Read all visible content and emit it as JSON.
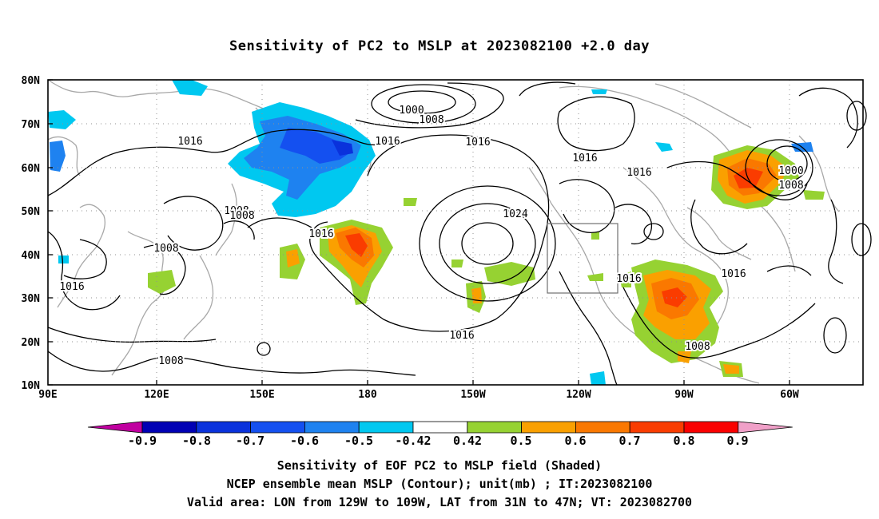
{
  "title": "Sensitivity of PC2 to MSLP at 2023082100 +2.0 day",
  "lat_labels": [
    "80N",
    "70N",
    "60N",
    "50N",
    "40N",
    "30N",
    "20N",
    "10N"
  ],
  "lon_labels": [
    "90E",
    "120E",
    "150E",
    "180",
    "150W",
    "120W",
    "90W",
    "60W"
  ],
  "contour_labels": [
    "1000",
    "1008",
    "1016",
    "1016",
    "1016",
    "1016",
    "1024",
    "1016",
    "1016",
    "1016",
    "1016",
    "1016",
    "1008",
    "1008",
    "1008",
    "1016",
    "1008",
    "1008",
    "1000",
    "1008"
  ],
  "colorbar": {
    "labels": [
      "-0.9",
      "-0.8",
      "-0.7",
      "-0.6",
      "-0.5",
      "-0.42",
      "0.42",
      "0.5",
      "0.6",
      "0.7",
      "0.8",
      "0.9"
    ],
    "colors": [
      "#c000a0",
      "#0000b4",
      "#0a32dc",
      "#1450f0",
      "#1e82f0",
      "#00c8f0",
      "#ffffff",
      "#96d232",
      "#faa000",
      "#fa7800",
      "#fa3c00",
      "#fa0000",
      "#f0a0c8"
    ]
  },
  "captions": [
    "Sensitivity of EOF PC2 to MSLP field (Shaded)",
    "NCEP ensemble mean MSLP (Contour); unit(mb) ; IT:2023082100",
    "Valid area: LON from 129W to 109W, LAT from 31N to 47N; VT: 2023082700"
  ]
}
